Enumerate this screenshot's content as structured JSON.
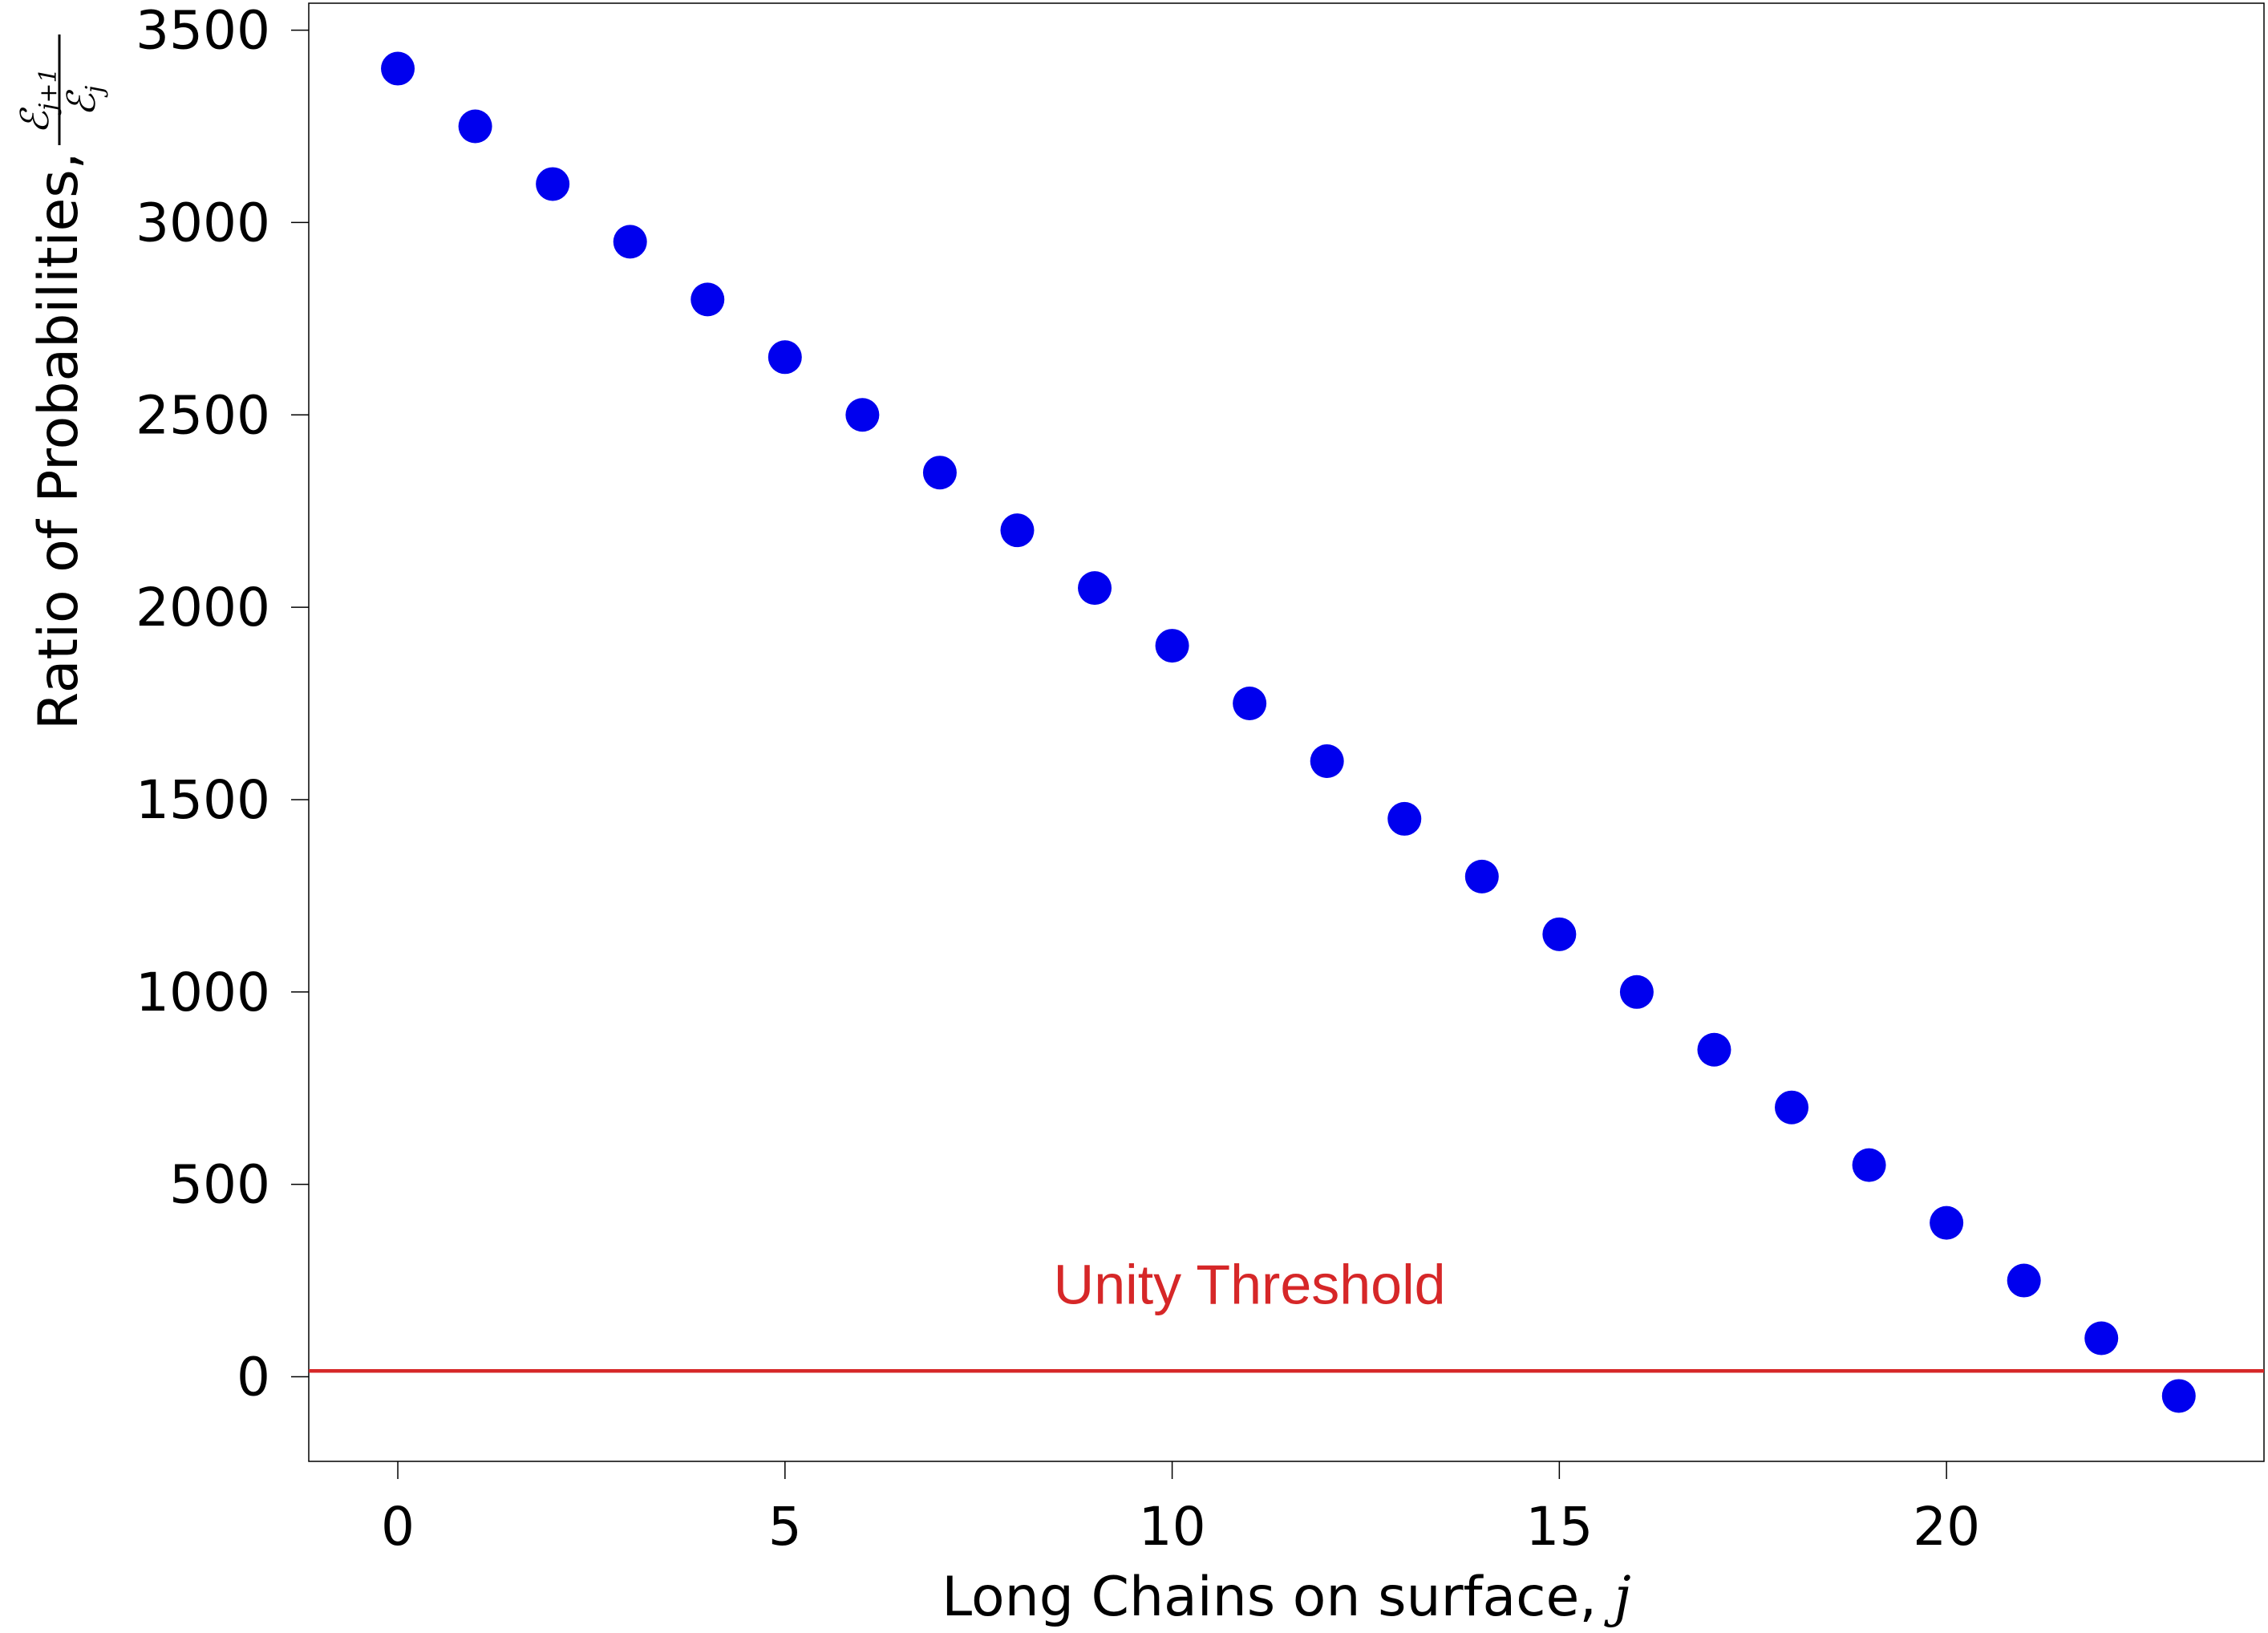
{
  "chart_data": {
    "type": "scatter",
    "xlabel": "Long Chains on surface, ",
    "xlabel_var": "j",
    "ylabel": "Ratio of Probabilities, ",
    "ylabel_frac_num": "ℰ",
    "ylabel_frac_num_sub": "j+1",
    "ylabel_frac_den": "ℰ",
    "ylabel_frac_den_sub": "j",
    "xlim": [
      -1.15,
      24.1
    ],
    "ylim": [
      -220,
      3570
    ],
    "xticks": [
      0,
      5,
      10,
      15,
      20
    ],
    "yticks": [
      0,
      500,
      1000,
      1500,
      2000,
      2500,
      3000,
      3500
    ],
    "marker_color": "#0000ee",
    "series": [
      {
        "x": [
          0,
          1,
          2,
          3,
          4,
          5,
          6,
          7,
          8,
          9,
          10,
          11,
          12,
          13,
          14,
          15,
          16,
          17,
          18,
          19,
          20,
          21,
          22,
          23
        ],
        "y": [
          3400,
          3250,
          3100,
          2950,
          2800,
          2650,
          2500,
          2350,
          2200,
          2050,
          1900,
          1750,
          1600,
          1450,
          1300,
          1150,
          1000,
          850,
          700,
          550,
          400,
          250,
          100,
          -50
        ]
      }
    ],
    "threshold": {
      "value": 15,
      "label": "Unity Threshold",
      "label_x": 11,
      "label_y": 190,
      "color": "#d62728"
    },
    "grid": false
  }
}
